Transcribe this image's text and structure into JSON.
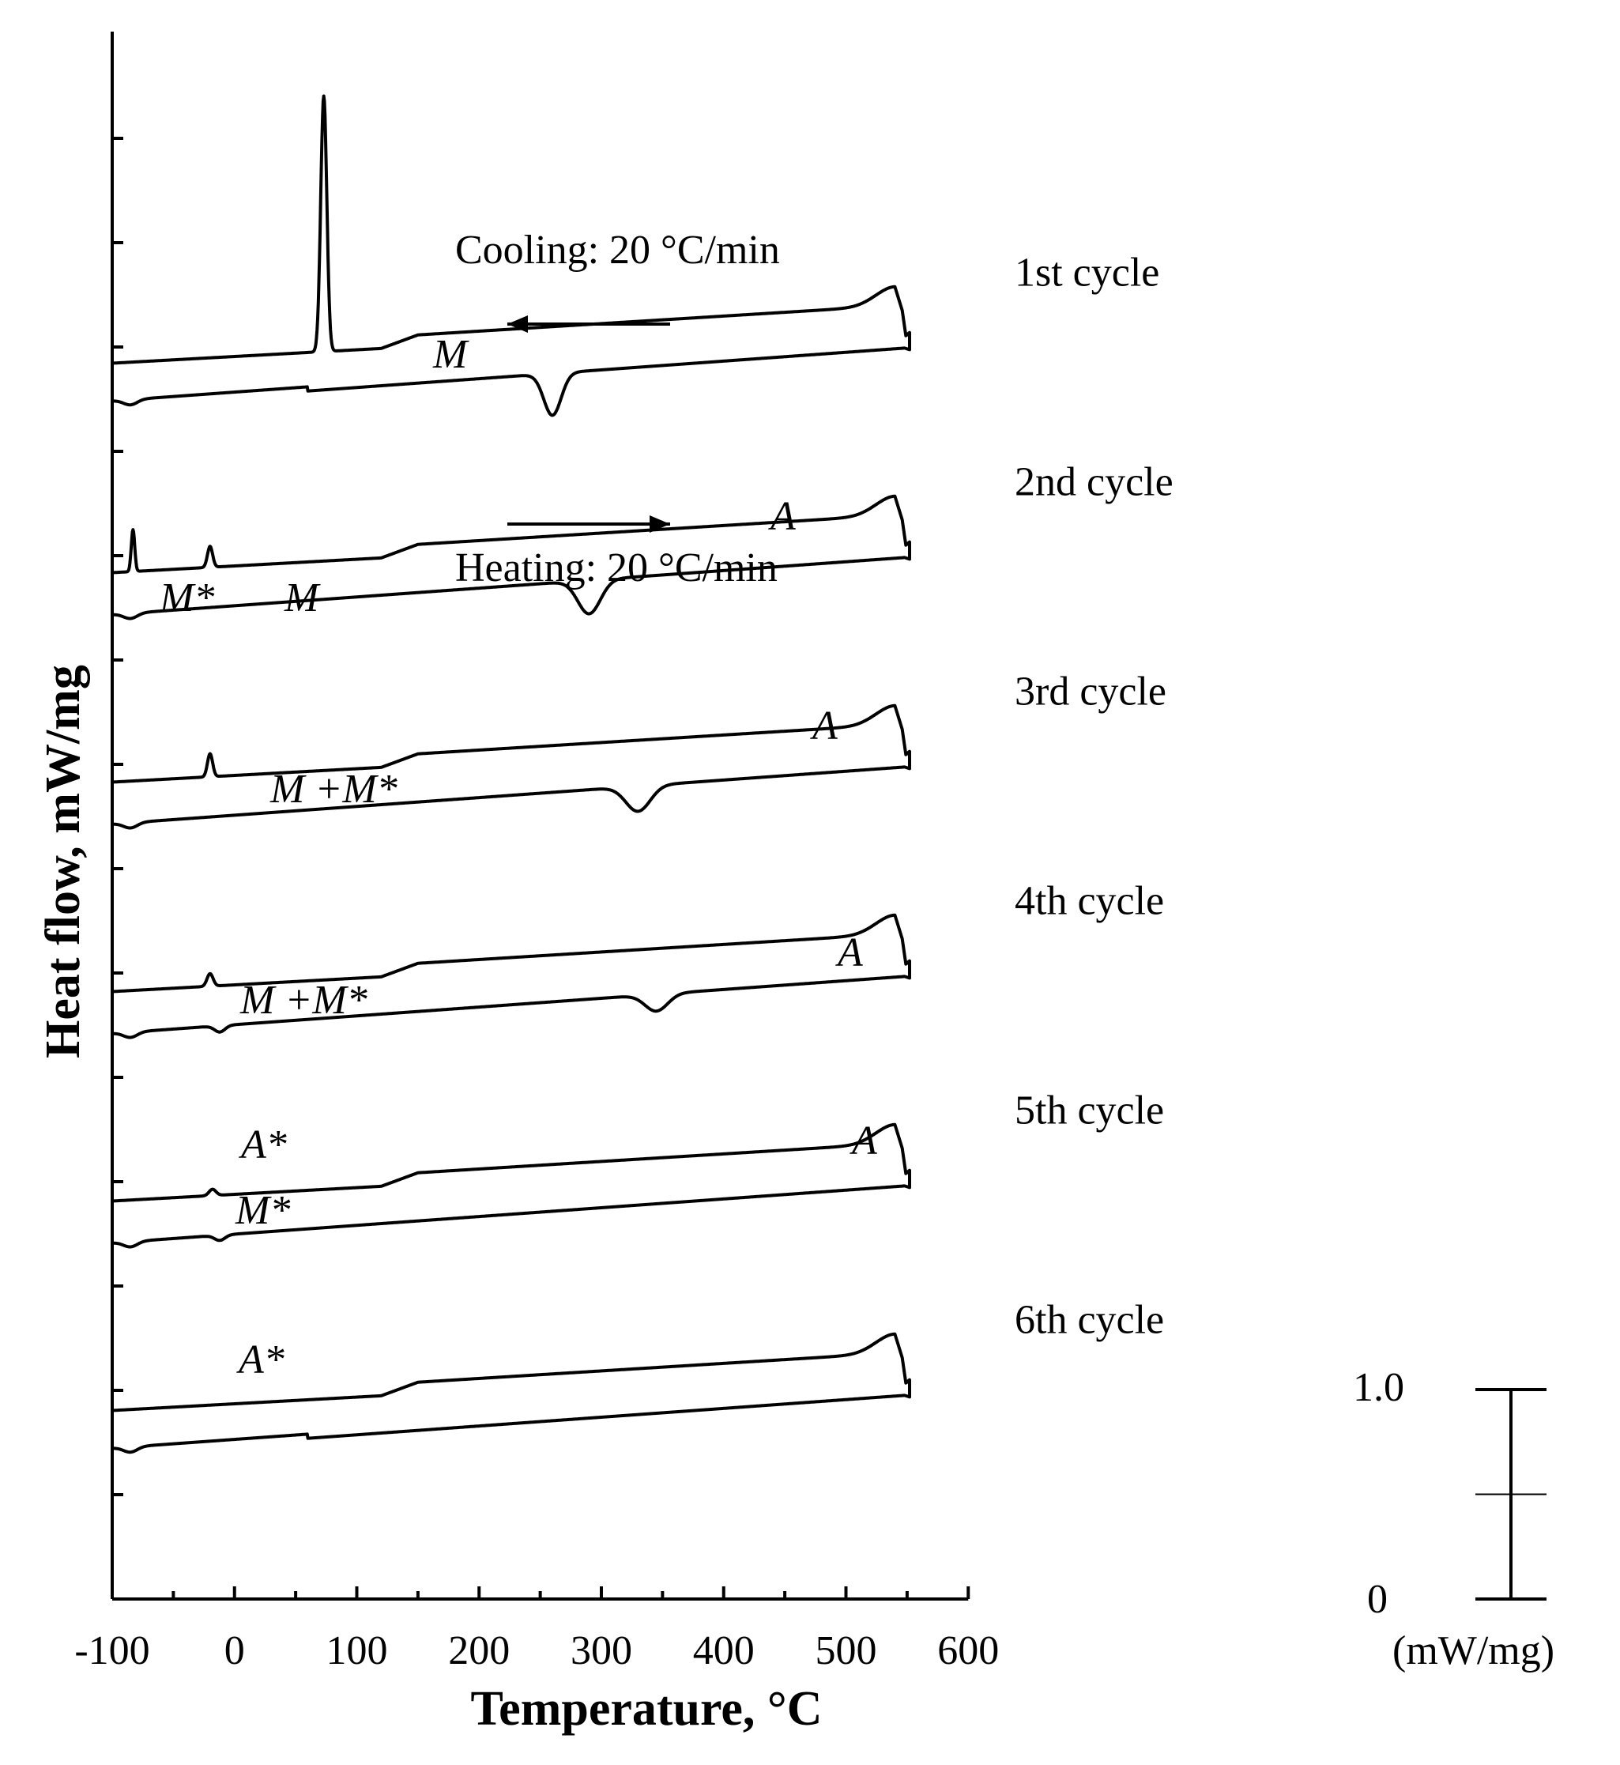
{
  "chart_data": {
    "type": "line",
    "title": "",
    "xlabel": "Temperature, °C",
    "ylabel": "Heat flow, mW/mg",
    "xlim": [
      -100,
      600
    ],
    "xticks": [
      -100,
      0,
      100,
      200,
      300,
      400,
      500,
      600
    ],
    "xtick_labels": [
      "-100",
      "0",
      "100",
      "200",
      "300",
      "400",
      "500",
      "600"
    ],
    "grid": false,
    "cooling_label": "Cooling: 20 °C/min",
    "heating_label": "Heating: 20 °C/min",
    "scale_bar": {
      "top_label": "1.0",
      "bottom_label": "0",
      "unit_label": "(mW/mg)",
      "span_mW_per_mg": 1.0
    },
    "cycles": [
      {
        "name": "1st cycle",
        "offset": 5.9,
        "cooling": {
          "peaks": [
            {
              "label": "M",
              "x": 73,
              "height": 1.22,
              "width": 3.5
            }
          ]
        },
        "heating": {
          "peaks": [
            {
              "label": "A",
              "x": 260,
              "depth": 0.2,
              "width": 10
            }
          ],
          "shift_at_60": true
        }
      },
      {
        "name": "2nd cycle",
        "offset": 4.9,
        "cooling": {
          "peaks": [
            {
              "label": "M*",
              "x": -83,
              "height": 0.2,
              "width": 2
            },
            {
              "label": "M",
              "x": -20,
              "height": 0.1,
              "width": 3
            }
          ]
        },
        "heating": {
          "peaks": [
            {
              "label": "A",
              "x": 290,
              "depth": 0.16,
              "width": 13
            }
          ],
          "shift_at_60": false
        }
      },
      {
        "name": "3rd cycle",
        "offset": 3.9,
        "cooling": {
          "peaks": [
            {
              "label": "M +M*",
              "x": -20,
              "height": 0.11,
              "width": 3
            }
          ]
        },
        "heating": {
          "peaks": [
            {
              "label": "A",
              "x": 330,
              "depth": 0.12,
              "width": 14
            }
          ],
          "shift_at_60": false
        }
      },
      {
        "name": "4th cycle",
        "offset": 2.9,
        "cooling": {
          "peaks": [
            {
              "label": "M +M*",
              "x": -20,
              "height": 0.06,
              "width": 3.5
            }
          ]
        },
        "heating": {
          "peaks": [
            {
              "label": "A*",
              "x": -12,
              "depth": 0.03,
              "width": 6
            },
            {
              "label": "A",
              "x": 345,
              "depth": 0.08,
              "width": 13
            }
          ],
          "shift_at_60": false
        }
      },
      {
        "name": "5th cycle",
        "offset": 1.9,
        "cooling": {
          "peaks": [
            {
              "label": "M*",
              "x": -18,
              "height": 0.03,
              "width": 4
            }
          ]
        },
        "heating": {
          "peaks": [
            {
              "label": "A*",
              "x": -12,
              "depth": 0.025,
              "width": 6
            }
          ],
          "shift_at_60": false
        }
      },
      {
        "name": "6th cycle",
        "offset": 0.9,
        "cooling": {
          "peaks": []
        },
        "heating": {
          "peaks": [],
          "shift_at_60": true
        }
      }
    ]
  }
}
